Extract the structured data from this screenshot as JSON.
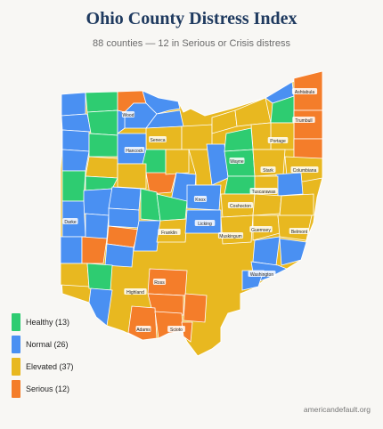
{
  "title": "Ohio County Distress Index",
  "subtitle": "88 counties — 12 in Serious or Crisis distress",
  "legend": [
    {
      "label": "Healthy (13)",
      "color": "#2ecc71"
    },
    {
      "label": "Normal (26)",
      "color": "#4a90f2"
    },
    {
      "label": "Elevated (37)",
      "color": "#e8b820"
    },
    {
      "label": "Serious (12)",
      "color": "#f47d2a"
    }
  ],
  "counties": [
    "Ashtabula",
    "Wood",
    "Trumbull",
    "Portage",
    "Seneca",
    "Hancock",
    "Wayne",
    "Stark",
    "Columbiana",
    "Knox",
    "Tuscarawas",
    "Coshocton",
    "Darke",
    "Franklin",
    "Licking",
    "Muskingum",
    "Guernsey",
    "Belmont",
    "Highland",
    "Ross",
    "Washington",
    "Adams",
    "Scioto"
  ],
  "footer": "americandefault.org"
}
